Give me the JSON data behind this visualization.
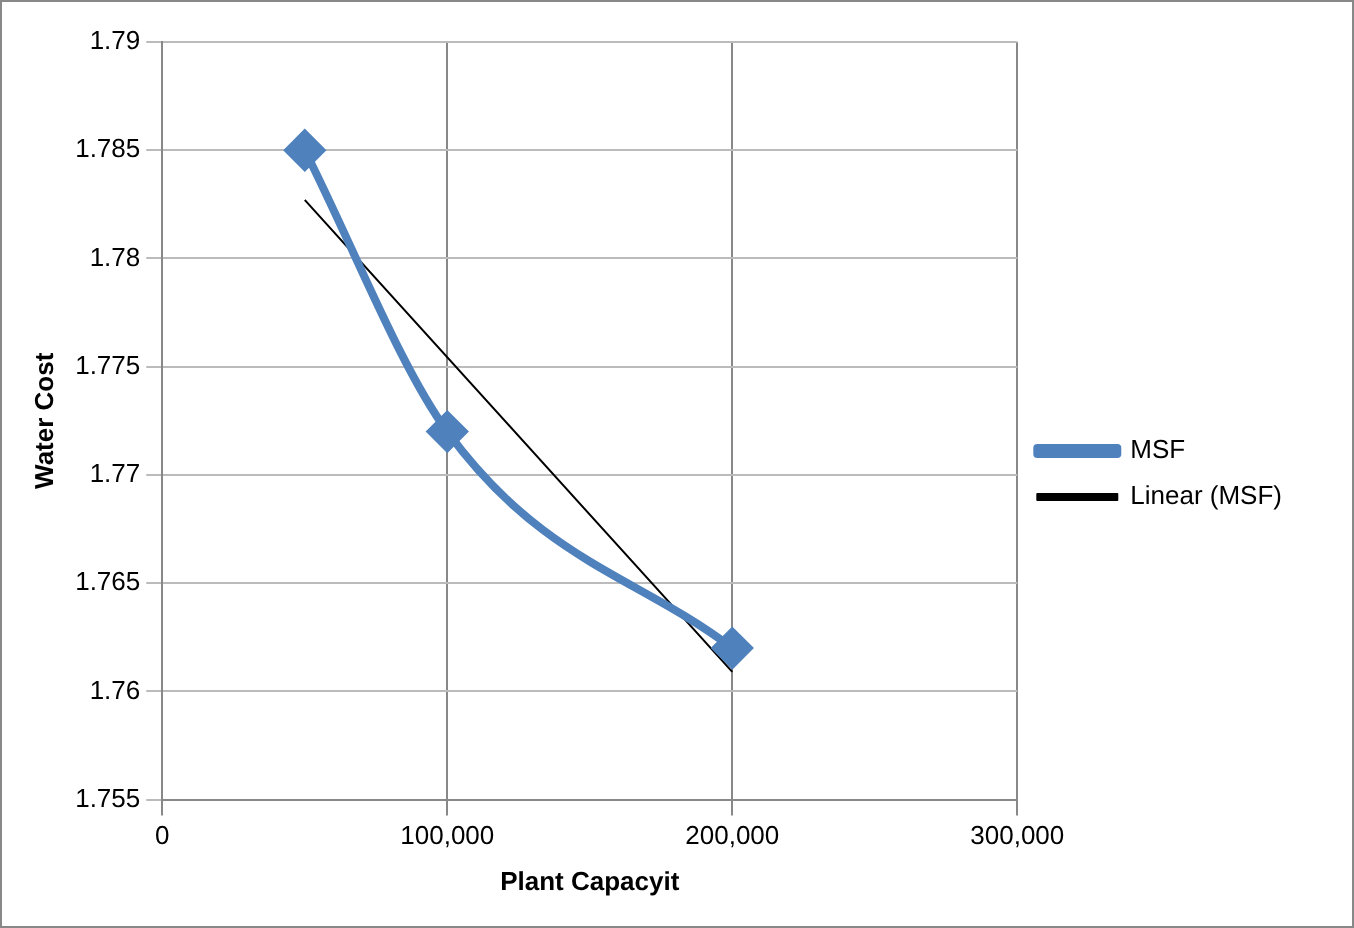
{
  "chart_data": {
    "type": "line",
    "xlabel": "Plant Capacyit",
    "ylabel": "Water Cost",
    "xlim": [
      0,
      300000
    ],
    "xticks": [
      0,
      {
        "value": 100000,
        "label": "100,000"
      },
      {
        "value": 200000,
        "label": "200,000"
      },
      {
        "value": 300000,
        "label": "300,000"
      }
    ],
    "ylim": [
      1.755,
      1.79
    ],
    "yticks": [
      1.755,
      1.76,
      1.765,
      1.77,
      1.775,
      1.78,
      1.785,
      1.79
    ],
    "grid": true,
    "legend": "right",
    "series": [
      {
        "name": "MSF",
        "color": "#4f81bd",
        "x": [
          50000,
          100000,
          200000
        ],
        "values": [
          1.785,
          1.772,
          1.762
        ],
        "marker": "diamond",
        "line_style": "solid"
      },
      {
        "name": "Linear (MSF)",
        "color": "#000000",
        "x": [
          50000,
          200000
        ],
        "values": [
          1.7827,
          1.7609
        ],
        "marker": "none",
        "line_style": "solid"
      }
    ]
  }
}
